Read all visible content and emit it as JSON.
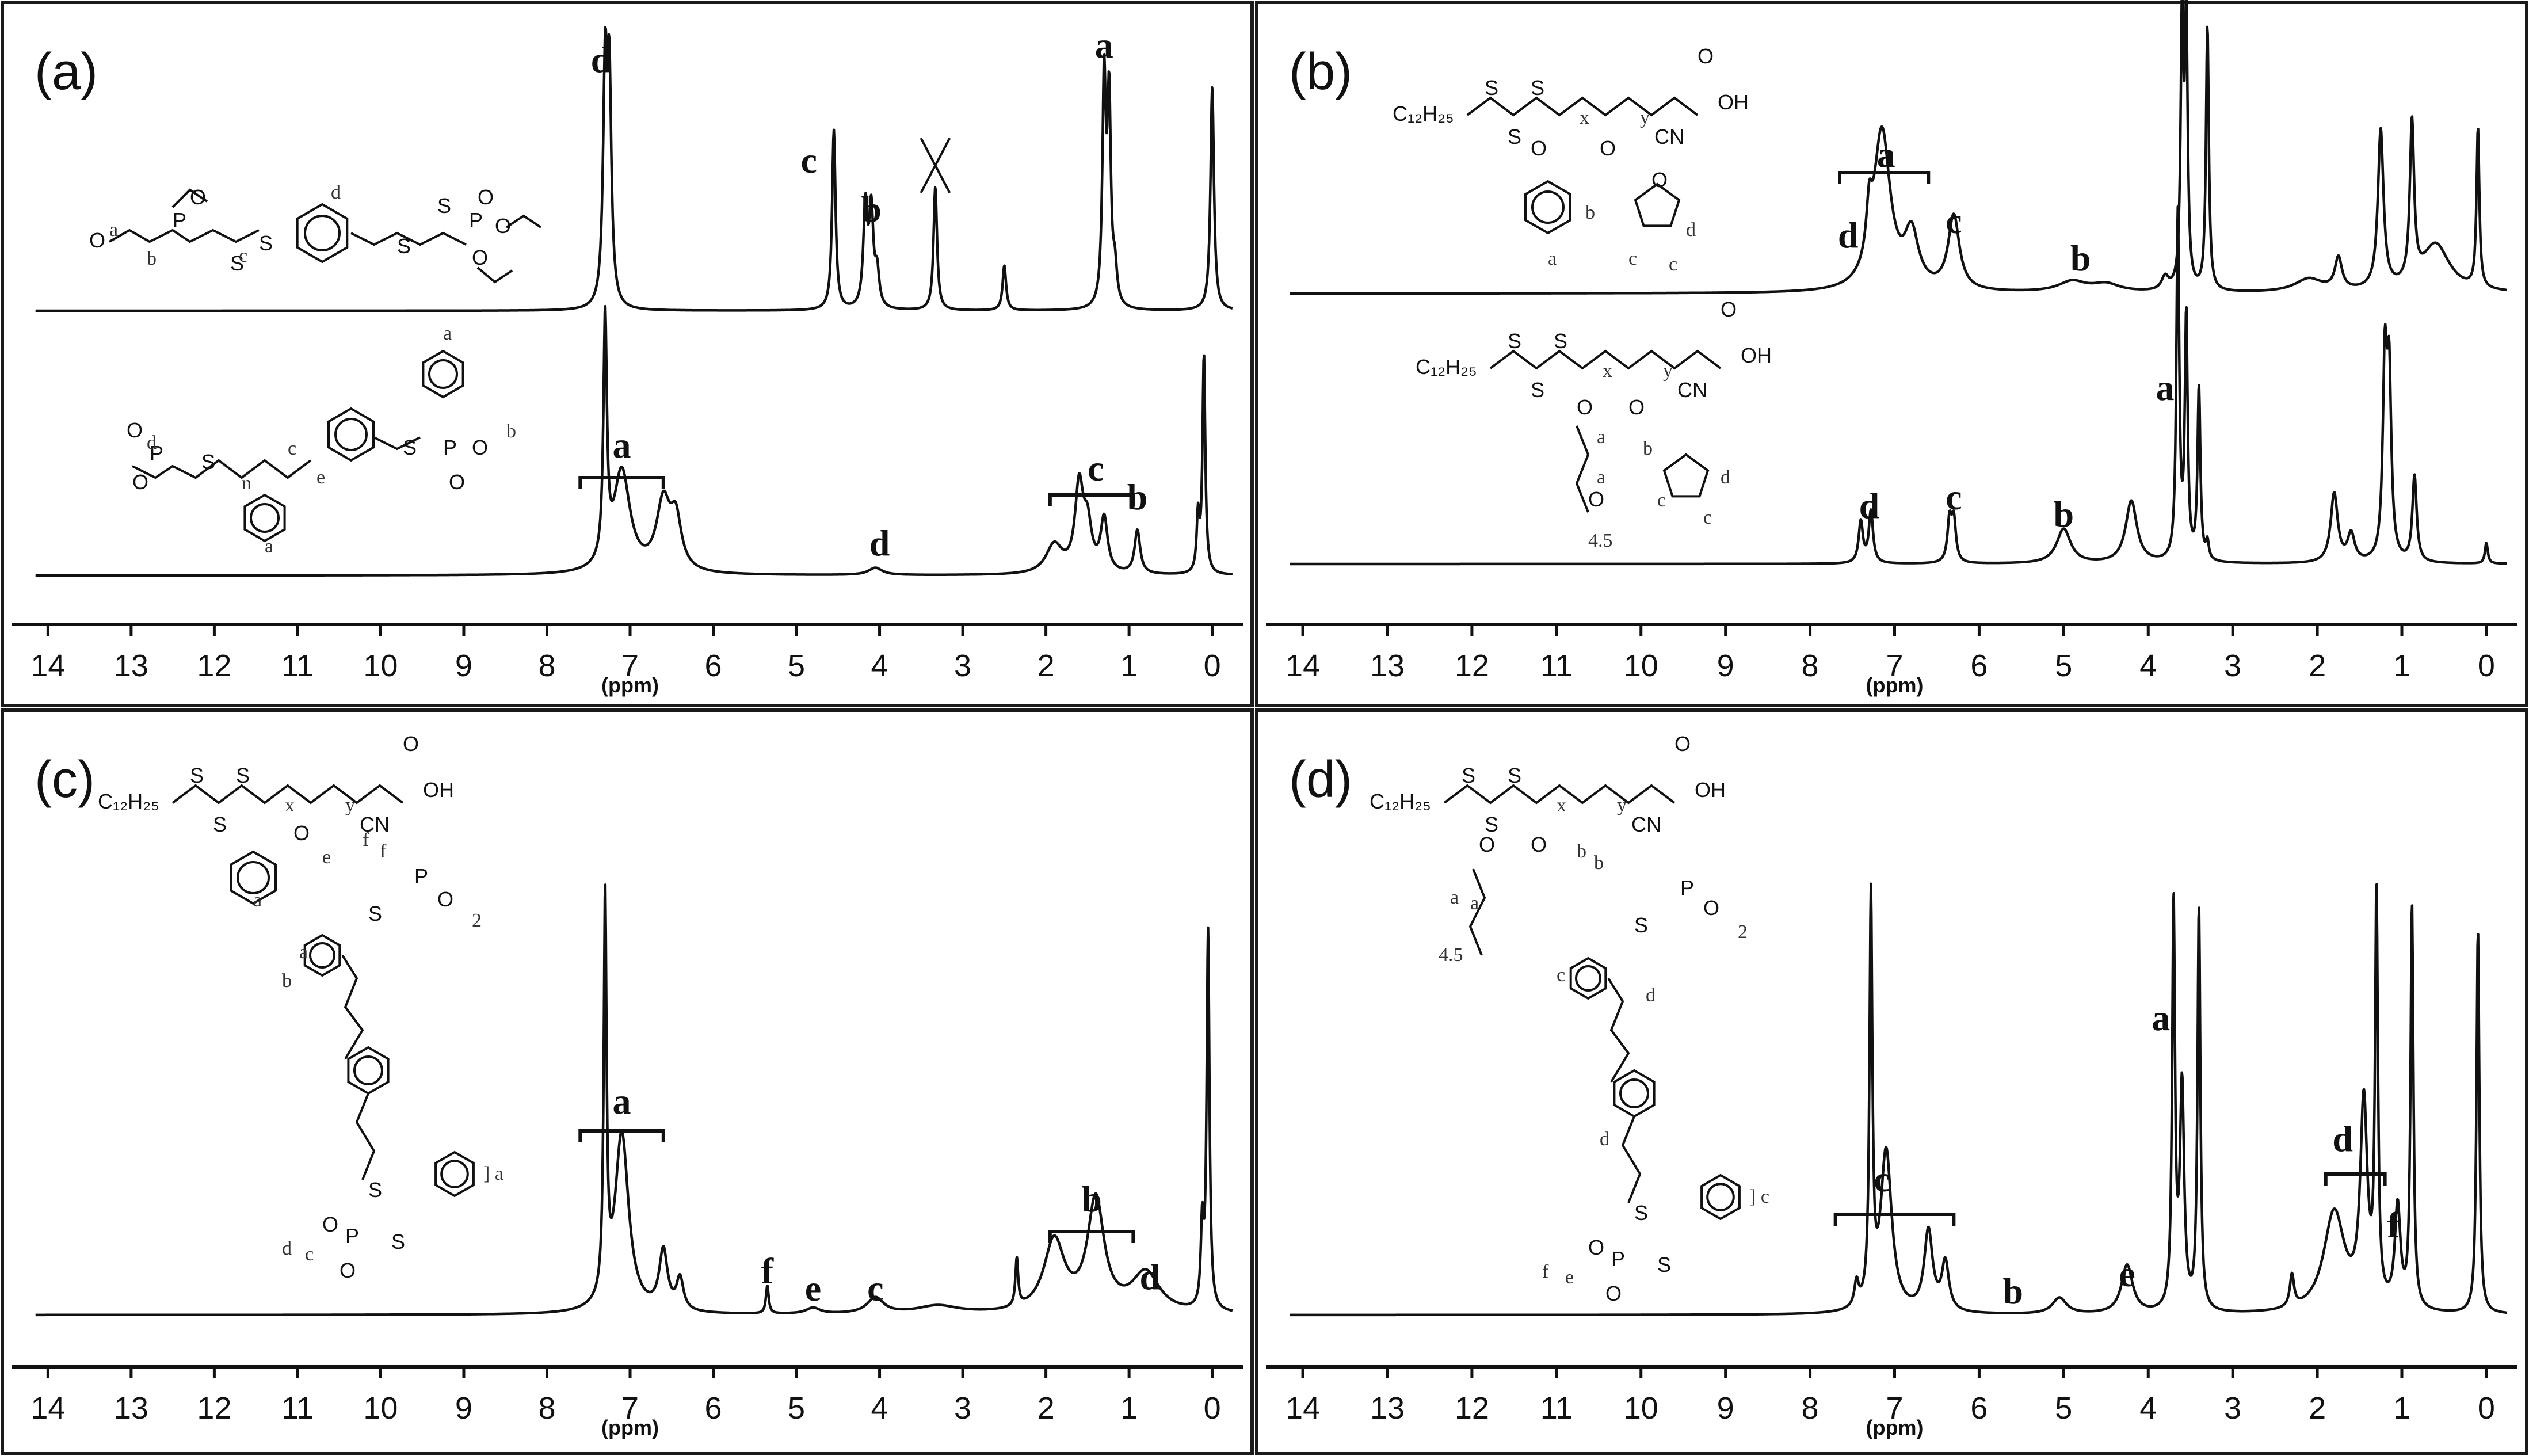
{
  "figure": {
    "unit_label": "(ppm)",
    "ticks": [
      14,
      13,
      12,
      11,
      10,
      9,
      8,
      7,
      6,
      5,
      4,
      3,
      2,
      1,
      0
    ]
  },
  "chart_data": [
    {
      "type": "line",
      "panel": "(a)",
      "xlabel": "(ppm)",
      "xlim": [
        14.3,
        -0.3
      ],
      "x_reversed": true,
      "series": [
        {
          "peaks": [
            {
              "ppm": 7.3,
              "height": 1.0,
              "width": 0.03
            },
            {
              "ppm": 7.25,
              "height": 0.95,
              "width": 0.03
            },
            {
              "ppm": 4.55,
              "height": 0.8,
              "width": 0.025
            },
            {
              "ppm": 4.17,
              "height": 0.45,
              "width": 0.03
            },
            {
              "ppm": 4.1,
              "height": 0.42,
              "width": 0.03
            },
            {
              "ppm": 4.03,
              "height": 0.15,
              "width": 0.03
            },
            {
              "ppm": 3.33,
              "height": 0.55,
              "width": 0.025
            },
            {
              "ppm": 2.5,
              "height": 0.2,
              "width": 0.025
            },
            {
              "ppm": 1.3,
              "height": 1.0,
              "width": 0.025
            },
            {
              "ppm": 1.24,
              "height": 0.9,
              "width": 0.025
            },
            {
              "ppm": 1.17,
              "height": 0.15,
              "width": 0.03
            },
            {
              "ppm": 0.0,
              "height": 1.0,
              "width": 0.025
            }
          ]
        },
        {
          "peaks": [
            {
              "ppm": 7.3,
              "height": 1.0,
              "width": 0.025
            },
            {
              "ppm": 7.1,
              "height": 0.42,
              "width": 0.12
            },
            {
              "ppm": 6.6,
              "height": 0.28,
              "width": 0.1
            },
            {
              "ppm": 6.45,
              "height": 0.2,
              "width": 0.08
            },
            {
              "ppm": 4.05,
              "height": 0.03,
              "width": 0.1
            },
            {
              "ppm": 1.9,
              "height": 0.12,
              "width": 0.12
            },
            {
              "ppm": 1.6,
              "height": 0.35,
              "width": 0.06
            },
            {
              "ppm": 1.5,
              "height": 0.18,
              "width": 0.06
            },
            {
              "ppm": 1.3,
              "height": 0.22,
              "width": 0.05
            },
            {
              "ppm": 0.9,
              "height": 0.18,
              "width": 0.04
            },
            {
              "ppm": 0.17,
              "height": 0.23,
              "width": 0.02
            },
            {
              "ppm": 0.1,
              "height": 0.9,
              "width": 0.02
            }
          ]
        }
      ],
      "annotations": [
        "d",
        "c",
        "b",
        "a",
        "a",
        "d",
        "c",
        "b"
      ]
    },
    {
      "type": "line",
      "panel": "(b)",
      "xlabel": "(ppm)",
      "xlim": [
        14.3,
        -0.3
      ],
      "x_reversed": true,
      "series": [
        {
          "peaks": [
            {
              "ppm": 7.3,
              "height": 0.18,
              "width": 0.04
            },
            {
              "ppm": 7.15,
              "height": 0.6,
              "width": 0.12
            },
            {
              "ppm": 6.8,
              "height": 0.2,
              "width": 0.1
            },
            {
              "ppm": 6.3,
              "height": 0.28,
              "width": 0.08
            },
            {
              "ppm": 4.9,
              "height": 0.04,
              "width": 0.2
            },
            {
              "ppm": 4.5,
              "height": 0.03,
              "width": 0.2
            },
            {
              "ppm": 3.8,
              "height": 0.05,
              "width": 0.05
            },
            {
              "ppm": 3.6,
              "height": 1.0,
              "width": 0.02
            },
            {
              "ppm": 3.55,
              "height": 1.0,
              "width": 0.02
            },
            {
              "ppm": 3.3,
              "height": 1.0,
              "width": 0.02
            },
            {
              "ppm": 2.1,
              "height": 0.05,
              "width": 0.2
            },
            {
              "ppm": 1.75,
              "height": 0.12,
              "width": 0.05
            },
            {
              "ppm": 1.25,
              "height": 0.6,
              "width": 0.04
            },
            {
              "ppm": 0.88,
              "height": 0.6,
              "width": 0.03
            },
            {
              "ppm": 0.6,
              "height": 0.18,
              "width": 0.2
            },
            {
              "ppm": 0.1,
              "height": 0.6,
              "width": 0.02
            }
          ]
        },
        {
          "peaks": [
            {
              "ppm": 7.4,
              "height": 0.12,
              "width": 0.03
            },
            {
              "ppm": 7.28,
              "height": 0.15,
              "width": 0.03
            },
            {
              "ppm": 6.35,
              "height": 0.12,
              "width": 0.03
            },
            {
              "ppm": 6.3,
              "height": 0.12,
              "width": 0.03
            },
            {
              "ppm": 5.0,
              "height": 0.1,
              "width": 0.1
            },
            {
              "ppm": 4.2,
              "height": 0.18,
              "width": 0.08
            },
            {
              "ppm": 3.65,
              "height": 1.0,
              "width": 0.02
            },
            {
              "ppm": 3.55,
              "height": 0.7,
              "width": 0.02
            },
            {
              "ppm": 3.4,
              "height": 0.5,
              "width": 0.02
            },
            {
              "ppm": 3.3,
              "height": 0.05,
              "width": 0.02
            },
            {
              "ppm": 1.8,
              "height": 0.2,
              "width": 0.05
            },
            {
              "ppm": 1.6,
              "height": 0.08,
              "width": 0.05
            },
            {
              "ppm": 1.2,
              "height": 0.55,
              "width": 0.03
            },
            {
              "ppm": 1.15,
              "height": 0.5,
              "width": 0.03
            },
            {
              "ppm": 0.85,
              "height": 0.25,
              "width": 0.03
            },
            {
              "ppm": 0.0,
              "height": 0.06,
              "width": 0.02
            }
          ]
        }
      ],
      "annotations": [
        "a",
        "d",
        "c",
        "b",
        "a",
        "d",
        "c",
        "b"
      ]
    },
    {
      "type": "line",
      "panel": "(c)",
      "xlabel": "(ppm)",
      "xlim": [
        14.3,
        -0.3
      ],
      "x_reversed": true,
      "series": [
        {
          "peaks": [
            {
              "ppm": 7.3,
              "height": 1.0,
              "width": 0.02
            },
            {
              "ppm": 7.1,
              "height": 0.45,
              "width": 0.1
            },
            {
              "ppm": 6.6,
              "height": 0.15,
              "width": 0.06
            },
            {
              "ppm": 6.4,
              "height": 0.08,
              "width": 0.05
            },
            {
              "ppm": 5.35,
              "height": 0.07,
              "width": 0.02
            },
            {
              "ppm": 4.8,
              "height": 0.015,
              "width": 0.1
            },
            {
              "ppm": 4.05,
              "height": 0.04,
              "width": 0.12
            },
            {
              "ppm": 3.3,
              "height": 0.02,
              "width": 0.3
            },
            {
              "ppm": 2.35,
              "height": 0.12,
              "width": 0.02
            },
            {
              "ppm": 1.9,
              "height": 0.18,
              "width": 0.15
            },
            {
              "ppm": 1.4,
              "height": 0.28,
              "width": 0.12
            },
            {
              "ppm": 0.8,
              "height": 0.1,
              "width": 0.2
            },
            {
              "ppm": 0.12,
              "height": 0.2,
              "width": 0.02
            },
            {
              "ppm": 0.05,
              "height": 0.95,
              "width": 0.02
            }
          ]
        }
      ],
      "annotations": [
        "a",
        "f",
        "e",
        "c",
        "b",
        "d"
      ]
    },
    {
      "type": "line",
      "panel": "(d)",
      "xlabel": "(ppm)",
      "xlim": [
        14.3,
        -0.3
      ],
      "x_reversed": true,
      "series": [
        {
          "peaks": [
            {
              "ppm": 7.45,
              "height": 0.06,
              "width": 0.03
            },
            {
              "ppm": 7.28,
              "height": 1.0,
              "width": 0.02
            },
            {
              "ppm": 7.1,
              "height": 0.4,
              "width": 0.08
            },
            {
              "ppm": 6.6,
              "height": 0.2,
              "width": 0.06
            },
            {
              "ppm": 6.4,
              "height": 0.12,
              "width": 0.05
            },
            {
              "ppm": 5.05,
              "height": 0.04,
              "width": 0.1
            },
            {
              "ppm": 4.25,
              "height": 0.12,
              "width": 0.08
            },
            {
              "ppm": 3.7,
              "height": 1.0,
              "width": 0.02
            },
            {
              "ppm": 3.6,
              "height": 0.55,
              "width": 0.03
            },
            {
              "ppm": 3.4,
              "height": 1.0,
              "width": 0.02
            },
            {
              "ppm": 2.3,
              "height": 0.08,
              "width": 0.03
            },
            {
              "ppm": 1.8,
              "height": 0.25,
              "width": 0.15
            },
            {
              "ppm": 1.45,
              "height": 0.5,
              "width": 0.05
            },
            {
              "ppm": 1.3,
              "height": 1.0,
              "width": 0.02
            },
            {
              "ppm": 1.05,
              "height": 0.25,
              "width": 0.04
            },
            {
              "ppm": 0.88,
              "height": 1.0,
              "width": 0.02
            },
            {
              "ppm": 0.1,
              "height": 0.95,
              "width": 0.02
            }
          ]
        }
      ],
      "annotations": [
        "c",
        "a",
        "d",
        "b",
        "e",
        "f"
      ]
    }
  ],
  "structures": {
    "a_top": {
      "s": "S",
      "o": "O",
      "p": "P",
      "labels": [
        "a",
        "b",
        "c",
        "d"
      ]
    },
    "a_bottom": {
      "s": "S",
      "o": "O",
      "p": "P",
      "labels": [
        "a",
        "b",
        "c",
        "d",
        "e",
        "n"
      ]
    },
    "b_top": {
      "group": "C₁₂H₂₅",
      "s": "S",
      "acid": "OH",
      "cn": "CN",
      "o": "O",
      "x": "x",
      "y": "y",
      "labels": [
        "a",
        "b",
        "c",
        "c",
        "d"
      ]
    },
    "b_bottom": {
      "group": "C₁₂H₂₅",
      "s": "S",
      "acid": "OH",
      "cn": "CN",
      "o": "O",
      "x": "x",
      "y": "y",
      "repeat": "4.5",
      "labels": [
        "a",
        "a",
        "b",
        "c",
        "c",
        "d"
      ]
    },
    "c": {
      "group": "C₁₂H₂₅",
      "s": "S",
      "acid": "OH",
      "cn": "CN",
      "o": "O",
      "p": "P",
      "x": "x",
      "y": "y",
      "sub": "2",
      "labels": [
        "a",
        "a",
        "a",
        "b",
        "c",
        "c",
        "d",
        "e",
        "f",
        "f"
      ]
    },
    "d": {
      "group": "C₁₂H₂₅",
      "s": "S",
      "acid": "OH",
      "cn": "CN",
      "o": "O",
      "p": "P",
      "x": "x",
      "y": "y",
      "sub": "2",
      "repeat": "4.5",
      "labels": [
        "a",
        "a",
        "b",
        "b",
        "c",
        "c",
        "d",
        "d",
        "e",
        "f"
      ]
    }
  }
}
